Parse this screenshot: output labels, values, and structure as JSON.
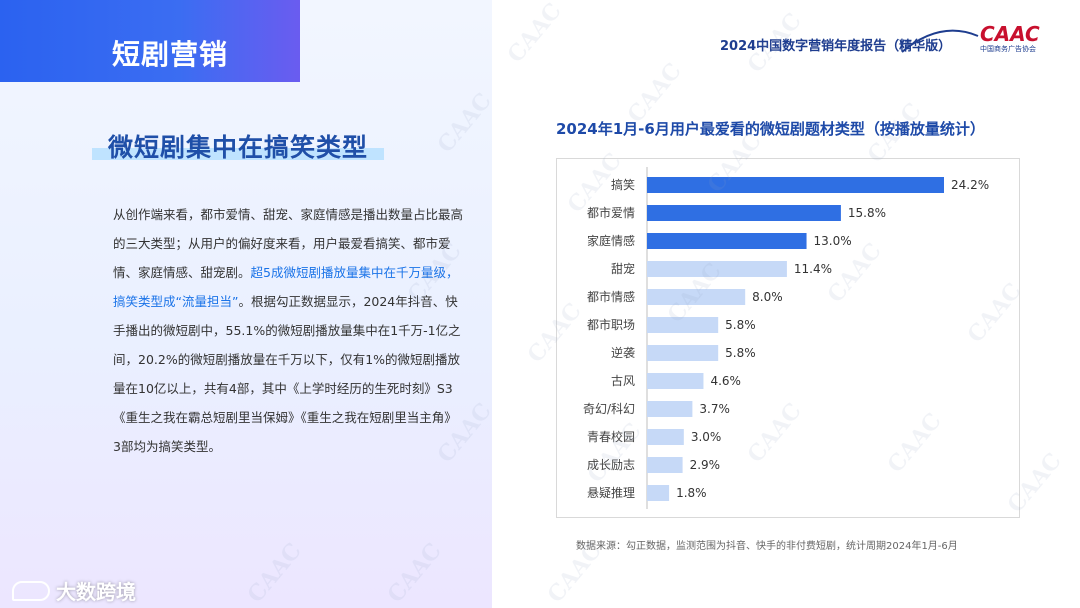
{
  "section_tag": "短剧营销",
  "headline": "微短剧集中在搞笑类型",
  "paragraph": {
    "part1": "从创作端来看，都市爱情、甜宠、家庭情感是播出数量占比最高的三大类型；从用户的偏好度来看，用户最爱看搞笑、都市爱情、家庭情感、甜宠剧。",
    "part2_highlight": "超5成微短剧播放量集中在千万量级，搞笑类型成“流量担当”",
    "part3": "。根据勾正数据显示，2024年抖音、快手播出的微短剧中，55.1%的微短剧播放量集中在1千万-1亿之间，20.2%的微短剧播放量在千万以下，仅有1%的微短剧播放量在10亿以上，共有4部，其中《上学时经历的生死时刻》S3《重生之我在霸总短剧里当保姆》《重生之我在短剧里当主角》3部均为搞笑类型。"
  },
  "report_title": "2024中国数字营销年度报告（精华版）",
  "brand": {
    "name": "CAAC",
    "subtitle": "中国商务广告协会"
  },
  "footer_logo": "大数跨境",
  "watermark": "CAAC",
  "source_note": "数据来源：勾正数据，监测范围为抖音、快手的非付费短剧，统计周期2024年1月-6月",
  "colors": {
    "bar_dark": "#2f6fe3",
    "bar_light": "#c6d9f7",
    "title": "#1e4aa8",
    "highlight": "#1a73e8"
  },
  "chart_data": {
    "type": "bar",
    "orientation": "horizontal",
    "title": "2024年1月-6月用户最爱看的微短剧题材类型（按播放量统计）",
    "categories": [
      "搞笑",
      "都市爱情",
      "家庭情感",
      "甜宠",
      "都市情感",
      "都市职场",
      "逆袭",
      "古风",
      "奇幻/科幻",
      "青春校园",
      "成长励志",
      "悬疑推理"
    ],
    "values": [
      24.2,
      15.8,
      13.0,
      11.4,
      8.0,
      5.8,
      5.8,
      4.6,
      3.7,
      3.0,
      2.9,
      1.8
    ],
    "labels": [
      "24.2%",
      "15.8%",
      "13.0%",
      "11.4%",
      "8.0%",
      "5.8%",
      "5.8%",
      "4.6%",
      "3.7%",
      "3.0%",
      "2.9%",
      "1.8%"
    ],
    "highlighted_count": 3,
    "unit": "%",
    "xlim": [
      0,
      24.2
    ],
    "grid": false,
    "legend": "none"
  }
}
